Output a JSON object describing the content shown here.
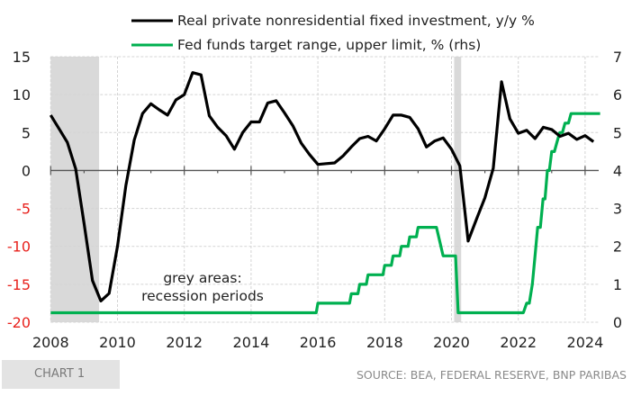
{
  "chart_data": {
    "type": "line",
    "title": "",
    "legend_position": "top",
    "legend": [
      {
        "name": "Real private nonresidential fixed investment, y/y %",
        "color": "#000000",
        "axis": "left"
      },
      {
        "name": "Fed funds target range, upper limit, % (rhs)",
        "color": "#00b050",
        "axis": "right"
      }
    ],
    "x_axis": {
      "range": [
        2008,
        2024.5
      ],
      "ticks": [
        "2008",
        "2010",
        "2012",
        "2014",
        "2016",
        "2018",
        "2020",
        "2022",
        "2024"
      ],
      "tick_values": [
        2008,
        2010,
        2012,
        2014,
        2016,
        2018,
        2020,
        2022,
        2024
      ]
    },
    "y_left": {
      "range": [
        -20,
        15
      ],
      "ticks": [
        15,
        10,
        5,
        0,
        -5,
        -10,
        -15,
        -20
      ],
      "negative_color": "#e8231e"
    },
    "y_right": {
      "range": [
        0,
        7
      ],
      "ticks": [
        7,
        6,
        5,
        4,
        3,
        2,
        1,
        0
      ]
    },
    "grid": true,
    "recessions": [
      {
        "start": 2008.0,
        "end": 2009.45
      },
      {
        "start": 2020.08,
        "end": 2020.29
      }
    ],
    "recession_color": "#d9d9d9",
    "series": [
      {
        "name": "Real private nonresidential fixed investment, y/y %",
        "frequency": "quarterly",
        "start": "2008Q1",
        "values": [
          7.3,
          5.5,
          3.7,
          0.2,
          -7.0,
          -14.5,
          -17.2,
          -16.2,
          -10.0,
          -2.0,
          4.0,
          7.5,
          8.8,
          8.0,
          7.3,
          9.3,
          10.0,
          12.9,
          12.6,
          7.2,
          5.7,
          4.6,
          2.8,
          5.0,
          6.4,
          6.4,
          8.9,
          9.2,
          7.6,
          5.9,
          3.6,
          2.1,
          0.8,
          0.9,
          1.0,
          1.9,
          3.1,
          4.2,
          4.5,
          3.9,
          5.5,
          7.3,
          7.3,
          7.0,
          5.5,
          3.1,
          3.9,
          4.3,
          2.8,
          0.6,
          -9.3,
          -6.4,
          -3.6,
          0.3,
          11.7,
          6.8,
          4.9,
          5.3,
          4.2,
          5.7,
          5.4,
          4.5,
          4.9,
          4.1,
          4.6,
          3.8
        ]
      },
      {
        "name": "Fed funds target range, upper limit, % (rhs)",
        "frequency": "step",
        "points": [
          [
            2008.0,
            0.25
          ],
          [
            2015.95,
            0.25
          ],
          [
            2016.0,
            0.5
          ],
          [
            2016.95,
            0.5
          ],
          [
            2017.0,
            0.75
          ],
          [
            2017.2,
            0.75
          ],
          [
            2017.25,
            1.0
          ],
          [
            2017.45,
            1.0
          ],
          [
            2017.5,
            1.25
          ],
          [
            2017.95,
            1.25
          ],
          [
            2018.0,
            1.5
          ],
          [
            2018.2,
            1.5
          ],
          [
            2018.25,
            1.75
          ],
          [
            2018.45,
            1.75
          ],
          [
            2018.5,
            2.0
          ],
          [
            2018.7,
            2.0
          ],
          [
            2018.75,
            2.25
          ],
          [
            2018.95,
            2.25
          ],
          [
            2019.0,
            2.5
          ],
          [
            2019.55,
            2.5
          ],
          [
            2019.75,
            1.75
          ],
          [
            2020.12,
            1.75
          ],
          [
            2020.2,
            0.25
          ],
          [
            2022.15,
            0.25
          ],
          [
            2022.25,
            0.5
          ],
          [
            2022.33,
            0.5
          ],
          [
            2022.42,
            1.0
          ],
          [
            2022.5,
            1.75
          ],
          [
            2022.58,
            2.5
          ],
          [
            2022.66,
            2.5
          ],
          [
            2022.74,
            3.25
          ],
          [
            2022.8,
            3.25
          ],
          [
            2022.87,
            4.0
          ],
          [
            2022.93,
            4.0
          ],
          [
            2023.0,
            4.5
          ],
          [
            2023.08,
            4.5
          ],
          [
            2023.16,
            4.75
          ],
          [
            2023.24,
            5.0
          ],
          [
            2023.32,
            5.0
          ],
          [
            2023.4,
            5.25
          ],
          [
            2023.5,
            5.25
          ],
          [
            2023.58,
            5.5
          ],
          [
            2024.45,
            5.5
          ]
        ]
      }
    ],
    "annotations": [
      {
        "lines": [
          "grey areas:",
          "recession periods"
        ]
      }
    ]
  },
  "footer": {
    "badge": "CHART 1",
    "source": "SOURCE: BEA, FEDERAL RESERVE, BNP PARIBAS"
  }
}
